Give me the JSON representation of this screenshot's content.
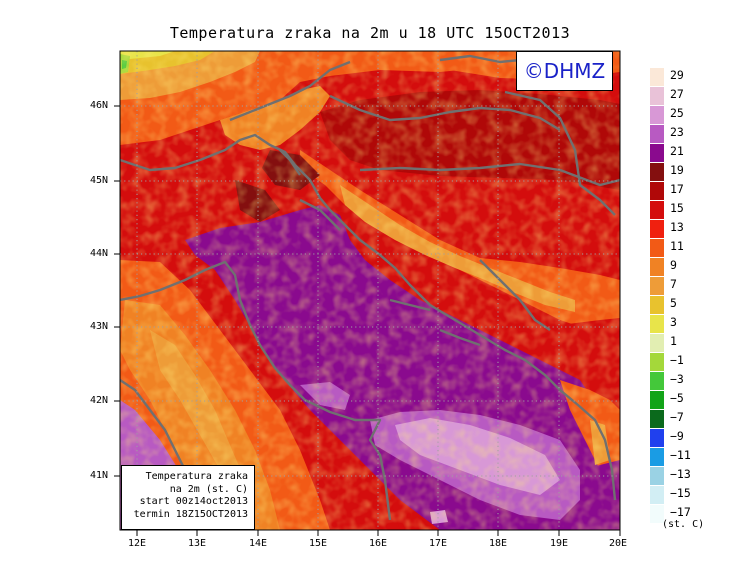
{
  "title": "Temperatura zraka na 2m u 18 UTC 15OCT2013",
  "logo": "©DHMZ",
  "info_box": {
    "lines": [
      "Temperatura zraka",
      "na 2m (st. C)",
      "start 00z14oct2013",
      "termin 18Z15OCT2013"
    ]
  },
  "axes": {
    "lat_labels": [
      "46N",
      "45N",
      "44N",
      "43N",
      "42N",
      "41N"
    ],
    "lon_labels": [
      "12E",
      "13E",
      "14E",
      "15E",
      "16E",
      "17E",
      "18E",
      "19E",
      "20E"
    ]
  },
  "legend": {
    "units": "(st. C)",
    "bins": [
      {
        "label": "29",
        "color": "#fbe8d8"
      },
      {
        "label": "27",
        "color": "#e9c2d8"
      },
      {
        "label": "25",
        "color": "#d898d6"
      },
      {
        "label": "23",
        "color": "#b85ac2"
      },
      {
        "label": "21",
        "color": "#8a0a8e"
      },
      {
        "label": "19",
        "color": "#840f0f"
      },
      {
        "label": "17",
        "color": "#b00808"
      },
      {
        "label": "15",
        "color": "#d40d0d"
      },
      {
        "label": "13",
        "color": "#f0200f"
      },
      {
        "label": "11",
        "color": "#f25a16"
      },
      {
        "label": "9",
        "color": "#f08224"
      },
      {
        "label": "7",
        "color": "#ee9c38"
      },
      {
        "label": "5",
        "color": "#e8c22e"
      },
      {
        "label": "3",
        "color": "#e8e44a"
      },
      {
        "label": "1",
        "color": "#e2eeb2"
      },
      {
        "label": "−1",
        "color": "#a4d83a"
      },
      {
        "label": "−3",
        "color": "#44c83a"
      },
      {
        "label": "−5",
        "color": "#12a418"
      },
      {
        "label": "−7",
        "color": "#0b6a1c"
      },
      {
        "label": "−9",
        "color": "#2040ee"
      },
      {
        "label": "−11",
        "color": "#1a9ce4"
      },
      {
        "label": "−13",
        "color": "#9ad2e4"
      },
      {
        "label": "−15",
        "color": "#d2eef4"
      },
      {
        "label": "−17",
        "color": "#f2fcfc"
      }
    ]
  }
}
